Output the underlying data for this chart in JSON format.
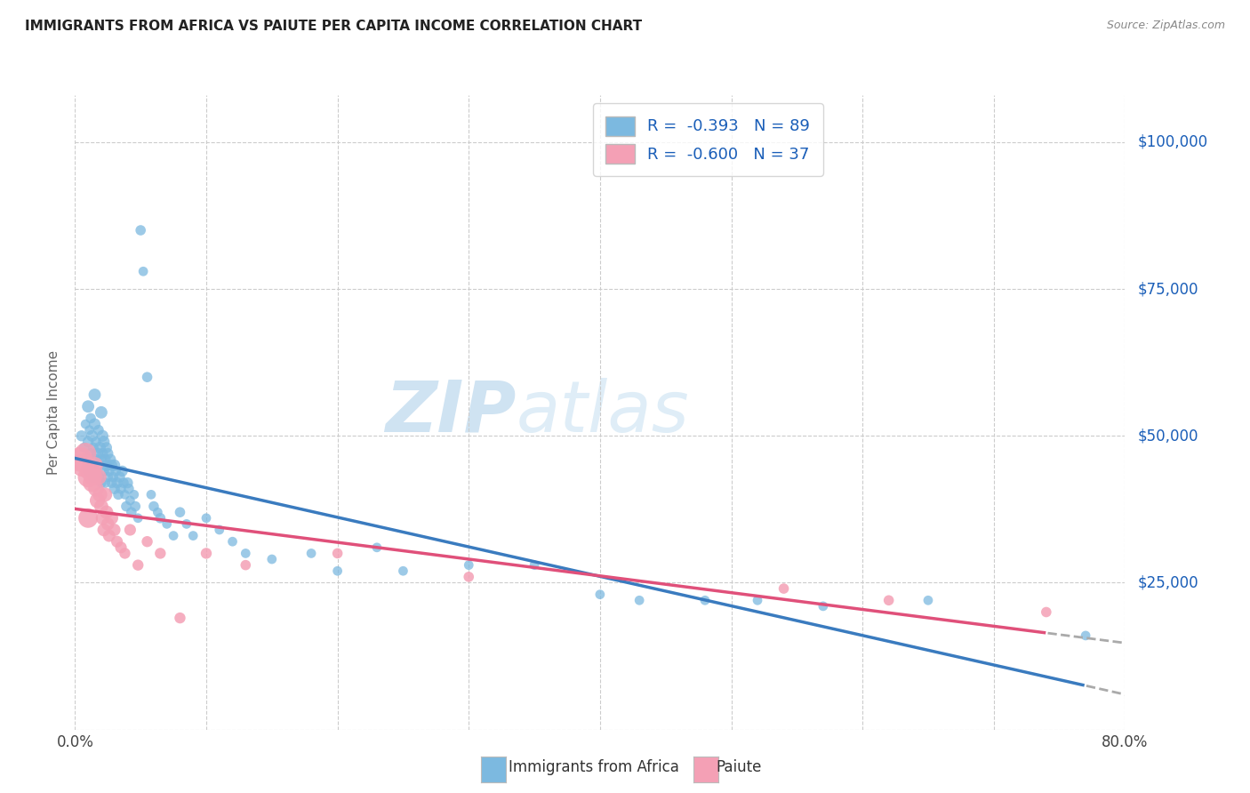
{
  "title": "IMMIGRANTS FROM AFRICA VS PAIUTE PER CAPITA INCOME CORRELATION CHART",
  "source": "Source: ZipAtlas.com",
  "ylabel": "Per Capita Income",
  "yticks": [
    0,
    25000,
    50000,
    75000,
    100000
  ],
  "ytick_labels": [
    "",
    "$25,000",
    "$50,000",
    "$75,000",
    "$100,000"
  ],
  "xlim": [
    0.0,
    0.8
  ],
  "ylim": [
    0,
    108000
  ],
  "legend_r_africa": "-0.393",
  "legend_n_africa": "89",
  "legend_r_paiute": "-0.600",
  "legend_n_paiute": "37",
  "color_africa": "#7cb9e0",
  "color_paiute": "#f4a0b5",
  "color_blue_text": "#1a5eb8",
  "color_pink_text": "#d63060",
  "watermark_zip": "ZIP",
  "watermark_atlas": "atlas",
  "africa_scatter_x": [
    0.005,
    0.007,
    0.008,
    0.009,
    0.01,
    0.01,
    0.01,
    0.011,
    0.012,
    0.012,
    0.013,
    0.013,
    0.014,
    0.014,
    0.015,
    0.015,
    0.015,
    0.016,
    0.016,
    0.017,
    0.018,
    0.018,
    0.019,
    0.02,
    0.02,
    0.02,
    0.021,
    0.021,
    0.022,
    0.022,
    0.023,
    0.023,
    0.024,
    0.024,
    0.025,
    0.025,
    0.026,
    0.027,
    0.028,
    0.028,
    0.029,
    0.03,
    0.03,
    0.031,
    0.032,
    0.033,
    0.034,
    0.035,
    0.036,
    0.037,
    0.038,
    0.039,
    0.04,
    0.041,
    0.042,
    0.043,
    0.045,
    0.046,
    0.048,
    0.05,
    0.052,
    0.055,
    0.058,
    0.06,
    0.063,
    0.065,
    0.07,
    0.075,
    0.08,
    0.085,
    0.09,
    0.1,
    0.11,
    0.12,
    0.13,
    0.15,
    0.18,
    0.2,
    0.23,
    0.25,
    0.3,
    0.35,
    0.4,
    0.43,
    0.48,
    0.52,
    0.57,
    0.65,
    0.77
  ],
  "africa_scatter_y": [
    50000,
    48000,
    52000,
    46000,
    55000,
    49000,
    44000,
    51000,
    47000,
    53000,
    45000,
    50000,
    48000,
    43000,
    57000,
    52000,
    46000,
    49000,
    44000,
    47000,
    51000,
    43000,
    48000,
    54000,
    46000,
    42000,
    50000,
    47000,
    44000,
    49000,
    46000,
    42000,
    48000,
    45000,
    43000,
    47000,
    44000,
    46000,
    42000,
    45000,
    43000,
    41000,
    45000,
    44000,
    42000,
    40000,
    43000,
    41000,
    44000,
    42000,
    40000,
    38000,
    42000,
    41000,
    39000,
    37000,
    40000,
    38000,
    36000,
    85000,
    78000,
    60000,
    40000,
    38000,
    37000,
    36000,
    35000,
    33000,
    37000,
    35000,
    33000,
    36000,
    34000,
    32000,
    30000,
    29000,
    30000,
    27000,
    31000,
    27000,
    28000,
    28000,
    23000,
    22000,
    22000,
    22000,
    21000,
    22000,
    16000
  ],
  "africa_scatter_size": [
    80,
    70,
    60,
    90,
    100,
    80,
    70,
    60,
    80,
    70,
    80,
    90,
    70,
    80,
    100,
    90,
    80,
    70,
    80,
    90,
    70,
    80,
    90,
    100,
    80,
    70,
    90,
    80,
    70,
    90,
    80,
    70,
    80,
    90,
    70,
    80,
    70,
    80,
    70,
    80,
    70,
    80,
    90,
    70,
    80,
    70,
    80,
    70,
    80,
    70,
    60,
    70,
    80,
    70,
    60,
    70,
    60,
    70,
    60,
    70,
    60,
    70,
    60,
    70,
    60,
    70,
    60,
    60,
    70,
    60,
    60,
    60,
    60,
    60,
    60,
    60,
    60,
    60,
    60,
    60,
    60,
    60,
    60,
    60,
    60,
    60,
    60,
    60,
    60
  ],
  "paiute_scatter_x": [
    0.004,
    0.006,
    0.008,
    0.01,
    0.01,
    0.012,
    0.013,
    0.014,
    0.015,
    0.016,
    0.017,
    0.018,
    0.019,
    0.02,
    0.021,
    0.022,
    0.023,
    0.024,
    0.025,
    0.026,
    0.028,
    0.03,
    0.032,
    0.035,
    0.038,
    0.042,
    0.048,
    0.055,
    0.065,
    0.08,
    0.1,
    0.13,
    0.2,
    0.3,
    0.54,
    0.62,
    0.74
  ],
  "paiute_scatter_y": [
    46000,
    45000,
    47000,
    43000,
    36000,
    44000,
    42000,
    43000,
    45000,
    41000,
    39000,
    43000,
    40000,
    38000,
    36000,
    34000,
    40000,
    37000,
    35000,
    33000,
    36000,
    34000,
    32000,
    31000,
    30000,
    34000,
    28000,
    32000,
    30000,
    19000,
    30000,
    28000,
    30000,
    26000,
    24000,
    22000,
    20000
  ],
  "paiute_scatter_size": [
    400,
    350,
    300,
    280,
    250,
    280,
    220,
    200,
    180,
    160,
    150,
    160,
    140,
    130,
    120,
    110,
    130,
    120,
    110,
    100,
    110,
    100,
    90,
    90,
    80,
    90,
    80,
    80,
    80,
    80,
    80,
    70,
    70,
    70,
    70,
    70,
    70
  ],
  "africa_line_color": "#3a7bbf",
  "paiute_line_color": "#e0507a",
  "dash_color": "#aaaaaa",
  "grid_color": "#cccccc"
}
